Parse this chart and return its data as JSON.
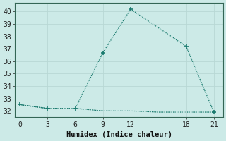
{
  "x_main": [
    0,
    3,
    6,
    9,
    12,
    18,
    21
  ],
  "y_main": [
    32.5,
    32.2,
    32.2,
    36.7,
    40.2,
    37.2,
    31.9
  ],
  "x_flat": [
    0,
    3,
    6,
    9,
    12,
    15,
    18,
    21
  ],
  "y_flat": [
    32.5,
    32.2,
    32.2,
    32.0,
    32.0,
    31.9,
    31.9,
    31.9
  ],
  "line_color": "#1a7a6e",
  "bg_color": "#cceae7",
  "grid_color": "#b8d8d4",
  "xlabel": "Humidex (Indice chaleur)",
  "xlim": [
    -0.5,
    22
  ],
  "ylim": [
    31.5,
    40.7
  ],
  "xticks": [
    0,
    3,
    6,
    9,
    12,
    18,
    21
  ],
  "yticks": [
    32,
    33,
    34,
    35,
    36,
    37,
    38,
    39,
    40
  ],
  "tick_fontsize": 7,
  "xlabel_fontsize": 7.5
}
